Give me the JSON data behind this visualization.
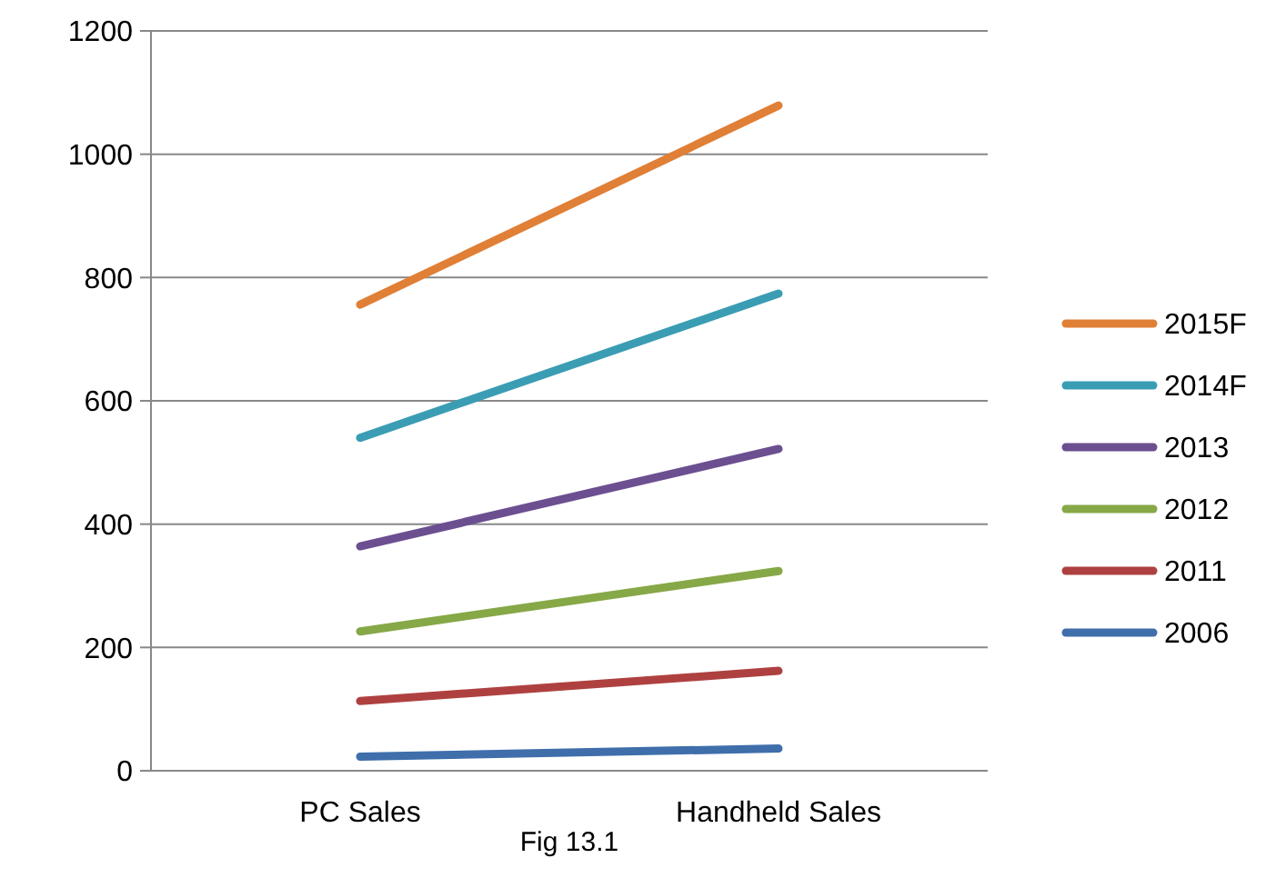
{
  "chart_data": {
    "type": "line",
    "categories": [
      "PC Sales",
      "Handheld Sales"
    ],
    "series": [
      {
        "name": "2015F",
        "color": "#e07f36",
        "values": [
          756,
          1079
        ]
      },
      {
        "name": "2014F",
        "color": "#3a9db3",
        "values": [
          540,
          774
        ]
      },
      {
        "name": "2013",
        "color": "#6c4f90",
        "values": [
          364,
          522
        ]
      },
      {
        "name": "2012",
        "color": "#86a847",
        "values": [
          226,
          324
        ]
      },
      {
        "name": "2011",
        "color": "#ae4140",
        "values": [
          113,
          162
        ]
      },
      {
        "name": "2006",
        "color": "#3f6eab",
        "values": [
          23,
          36
        ]
      }
    ],
    "ylim": [
      0,
      1200
    ],
    "yticks": [
      0,
      200,
      400,
      600,
      800,
      1000,
      1200
    ],
    "grid": "y",
    "legend": "right",
    "marker": "none",
    "line_style": "solid",
    "annotations": [
      "Fig 13.1"
    ]
  }
}
